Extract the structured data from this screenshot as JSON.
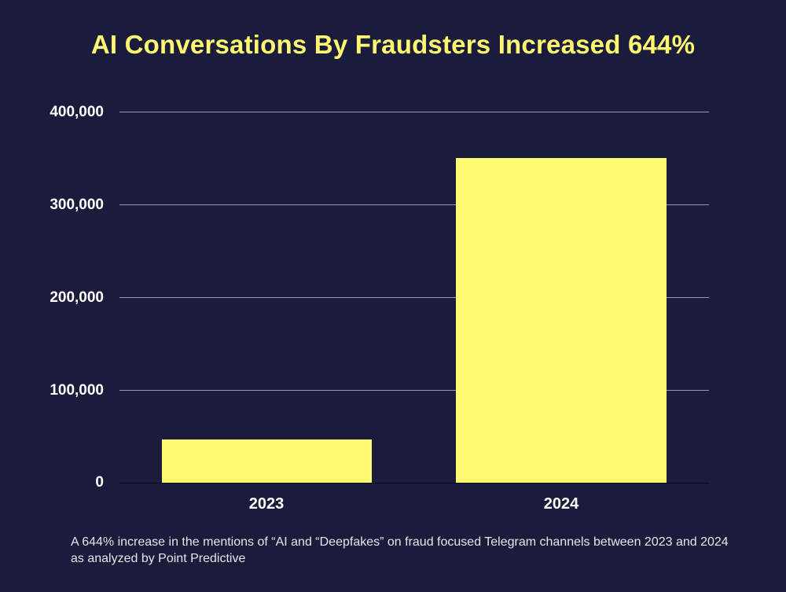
{
  "title": "AI Conversations By Fraudsters Increased 644%",
  "caption": "A 644% increase in the mentions of “AI and “Deepfakes” on fraud focused Telegram channels between 2023 and  2024 as analyzed by Point Predictive",
  "colors": {
    "background": "#1b1b3c",
    "bar": "#fefa72",
    "title": "#fdf86f",
    "gridline": "#9a9aaa"
  },
  "y_ticks": [
    "400,000",
    "300,000",
    "200,000",
    "100,000",
    "0"
  ],
  "x_labels": [
    "2023",
    "2024"
  ],
  "chart_data": {
    "type": "bar",
    "title": "AI Conversations By Fraudsters Increased 644%",
    "categories": [
      "2023",
      "2024"
    ],
    "values": [
      47000,
      350000
    ],
    "xlabel": "",
    "ylabel": "",
    "ylim": [
      0,
      400000
    ],
    "yticks": [
      0,
      100000,
      200000,
      300000,
      400000
    ],
    "grid": true,
    "legend": null,
    "annotations": [
      "A 644% increase in the mentions of “AI and “Deepfakes” on fraud focused Telegram channels between 2023 and  2024 as analyzed by Point Predictive"
    ]
  }
}
